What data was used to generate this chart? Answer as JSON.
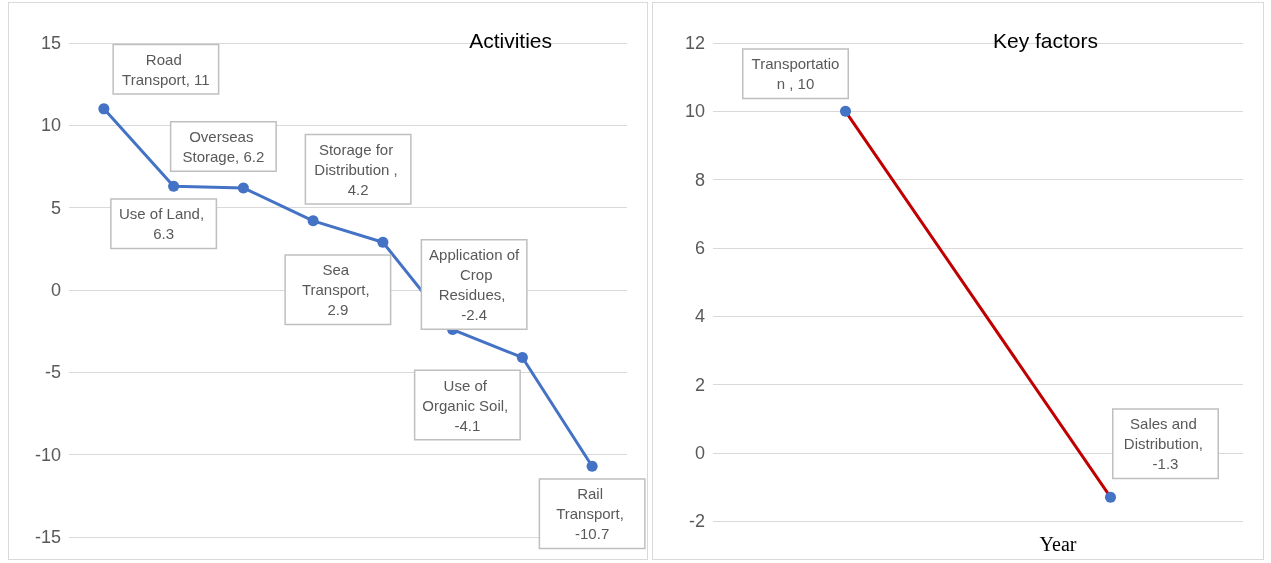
{
  "chart_data": [
    {
      "type": "line",
      "title": "Activities",
      "categories": [
        null,
        null,
        null,
        null,
        null,
        null,
        null,
        null
      ],
      "series": [
        {
          "color": "#4472c4",
          "values": [
            11,
            6.3,
            6.2,
            4.2,
            2.9,
            -2.4,
            -4.1,
            -10.7
          ],
          "value_labels": [
            "Road Transport, 11",
            "Use of Land, 6.3",
            "Overseas Storage, 6.2",
            "Storage for Distribution , 4.2",
            "Sea Transport, 2.9",
            "Application of  Crop Residues, -2.4",
            "Use of Organic Soil, -4.1",
            "Rail Transport, -10.7"
          ]
        }
      ],
      "ylim": [
        -15,
        15
      ],
      "yticks": [
        -15,
        -10,
        -5,
        0,
        5,
        10,
        15
      ],
      "grid": "y",
      "marker": "circle",
      "line_style": "solid"
    },
    {
      "type": "line",
      "title": "Key factors",
      "xlabel": "Year",
      "categories": [
        null,
        null
      ],
      "series": [
        {
          "color": "#c00000",
          "colors": [
            "#4472c4",
            "#4472c4"
          ],
          "values": [
            10,
            -1.3
          ],
          "value_labels": [
            "Transportation , 10",
            "Sales and Distribution, -1.3"
          ]
        }
      ],
      "ylim": [
        -2,
        12
      ],
      "yticks": [
        -2,
        0,
        2,
        4,
        6,
        8,
        10,
        12
      ],
      "grid": "y",
      "marker": "circle",
      "line_style": "solid"
    }
  ]
}
